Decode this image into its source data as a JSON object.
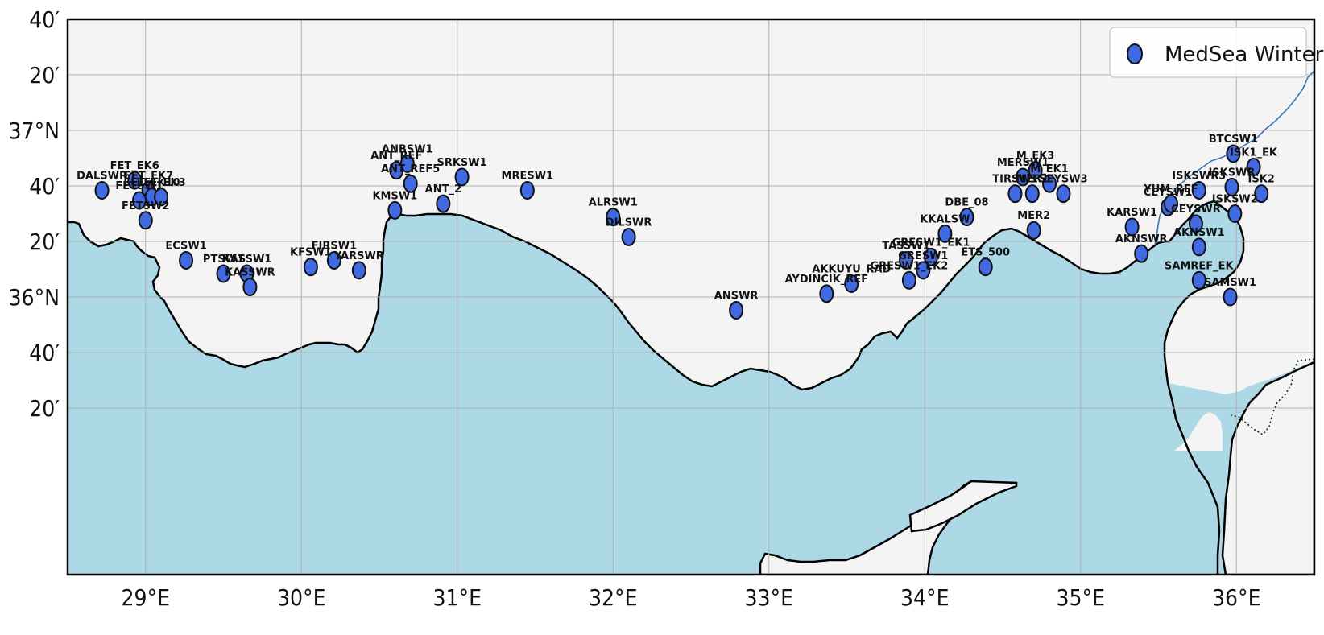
{
  "map": {
    "extent": {
      "lon": [
        28.5,
        36.5
      ],
      "lat": [
        35.6666667,
        37.3333333
      ]
    },
    "colors": {
      "sea": "#add8e6",
      "land": "#f4f4f4",
      "marker_fill": "#4169e1",
      "marker_edge": "#111111",
      "coast": "#000000",
      "river": "#3b78b5",
      "grid": "#b0b0b0"
    },
    "lon_ticks": [
      {
        "value": 29,
        "label": "29°E"
      },
      {
        "value": 30,
        "label": "30°E"
      },
      {
        "value": 31,
        "label": "31°E"
      },
      {
        "value": 32,
        "label": "32°E"
      },
      {
        "value": 33,
        "label": "33°E"
      },
      {
        "value": 34,
        "label": "34°E"
      },
      {
        "value": 35,
        "label": "35°E"
      },
      {
        "value": 36,
        "label": "36°E"
      }
    ],
    "lat_ticks": [
      {
        "value": 37.3333333,
        "label": "40′"
      },
      {
        "value": 37.1666667,
        "label": "20′"
      },
      {
        "value": 37.0,
        "label": "37°N"
      },
      {
        "value": 36.8333333,
        "label": "40′"
      },
      {
        "value": 36.6666667,
        "label": "20′"
      },
      {
        "value": 36.5,
        "label": "36°N"
      },
      {
        "value": 36.3333333,
        "label": "40′"
      },
      {
        "value": 36.1666667,
        "label": "20′"
      }
    ],
    "legend": {
      "label": "MedSea Winter",
      "position": "top-right"
    },
    "stations": [
      {
        "name": "DALSWR",
        "lon": 28.72,
        "lat": 36.82
      },
      {
        "name": "FET_EK6",
        "lon": 28.93,
        "lat": 36.85
      },
      {
        "name": "FET_EK7",
        "lon": 29.02,
        "lat": 36.82
      },
      {
        "name": "FET_EK10",
        "lon": 29.04,
        "lat": 36.8
      },
      {
        "name": "FETSW1",
        "lon": 28.96,
        "lat": 36.79
      },
      {
        "name": "FET_EK3",
        "lon": 29.1,
        "lat": 36.8
      },
      {
        "name": "FETSW2",
        "lon": 29.0,
        "lat": 36.73
      },
      {
        "name": "ECSW1",
        "lon": 29.26,
        "lat": 36.61
      },
      {
        "name": "PTSW1",
        "lon": 29.5,
        "lat": 36.57
      },
      {
        "name": "KASSW1",
        "lon": 29.65,
        "lat": 36.57
      },
      {
        "name": "KASSWR",
        "lon": 29.67,
        "lat": 36.53
      },
      {
        "name": "KFSW1",
        "lon": 30.06,
        "lat": 36.59
      },
      {
        "name": "FIRSW1",
        "lon": 30.21,
        "lat": 36.61
      },
      {
        "name": "YARSWR",
        "lon": 30.37,
        "lat": 36.58
      },
      {
        "name": "ANT_REF",
        "lon": 30.61,
        "lat": 36.88
      },
      {
        "name": "ANBSW1",
        "lon": 30.68,
        "lat": 36.9
      },
      {
        "name": "ANT_REF5",
        "lon": 30.7,
        "lat": 36.84
      },
      {
        "name": "KMSW1",
        "lon": 30.6,
        "lat": 36.76
      },
      {
        "name": "ANT_2",
        "lon": 30.91,
        "lat": 36.78
      },
      {
        "name": "SRKSW1",
        "lon": 31.03,
        "lat": 36.86
      },
      {
        "name": "MRESW1",
        "lon": 31.45,
        "lat": 36.82
      },
      {
        "name": "ALRSW1",
        "lon": 32.0,
        "lat": 36.74
      },
      {
        "name": "DILSWR",
        "lon": 32.1,
        "lat": 36.68
      },
      {
        "name": "ANSWR",
        "lon": 32.79,
        "lat": 36.46
      },
      {
        "name": "AKKUYU_RAD",
        "lon": 33.53,
        "lat": 36.54
      },
      {
        "name": "AYDINCIK_REF",
        "lon": 33.37,
        "lat": 36.51
      },
      {
        "name": "TASSW1",
        "lon": 33.88,
        "lat": 36.61
      },
      {
        "name": "GRESW1_EK1",
        "lon": 34.04,
        "lat": 36.62
      },
      {
        "name": "GRESW1",
        "lon": 33.99,
        "lat": 36.58
      },
      {
        "name": "GRESW1_EK2",
        "lon": 33.9,
        "lat": 36.55
      },
      {
        "name": "KKALSW",
        "lon": 34.13,
        "lat": 36.69
      },
      {
        "name": "DBE_08",
        "lon": 34.27,
        "lat": 36.74
      },
      {
        "name": "ETS_500",
        "lon": 34.39,
        "lat": 36.59
      },
      {
        "name": "MERSW1",
        "lon": 34.63,
        "lat": 36.86
      },
      {
        "name": "M_EK3",
        "lon": 34.71,
        "lat": 36.88
      },
      {
        "name": "M_EK1",
        "lon": 34.8,
        "lat": 36.84
      },
      {
        "name": "TIRSW1",
        "lon": 34.58,
        "lat": 36.81
      },
      {
        "name": "MER1",
        "lon": 34.69,
        "lat": 36.81
      },
      {
        "name": "SEYSW3",
        "lon": 34.89,
        "lat": 36.81
      },
      {
        "name": "MER2",
        "lon": 34.7,
        "lat": 36.7
      },
      {
        "name": "KARSW1",
        "lon": 35.33,
        "lat": 36.71
      },
      {
        "name": "AKNSWR",
        "lon": 35.39,
        "lat": 36.63
      },
      {
        "name": "CEYSW1",
        "lon": 35.56,
        "lat": 36.77
      },
      {
        "name": "YUM_REF",
        "lon": 35.58,
        "lat": 36.78
      },
      {
        "name": "CEYSWR",
        "lon": 35.74,
        "lat": 36.72
      },
      {
        "name": "ISKSWR3",
        "lon": 35.76,
        "lat": 36.82
      },
      {
        "name": "AKNSW1",
        "lon": 35.76,
        "lat": 36.65
      },
      {
        "name": "ISKSWR",
        "lon": 35.97,
        "lat": 36.83
      },
      {
        "name": "ISKSW2",
        "lon": 35.99,
        "lat": 36.75
      },
      {
        "name": "BTCSW1",
        "lon": 35.98,
        "lat": 36.93
      },
      {
        "name": "ISK1_EK",
        "lon": 36.11,
        "lat": 36.89
      },
      {
        "name": "ISK2",
        "lon": 36.16,
        "lat": 36.81
      },
      {
        "name": "SAMREF_EK",
        "lon": 35.76,
        "lat": 36.55
      },
      {
        "name": "SAMSW1",
        "lon": 35.96,
        "lat": 36.5
      }
    ]
  }
}
